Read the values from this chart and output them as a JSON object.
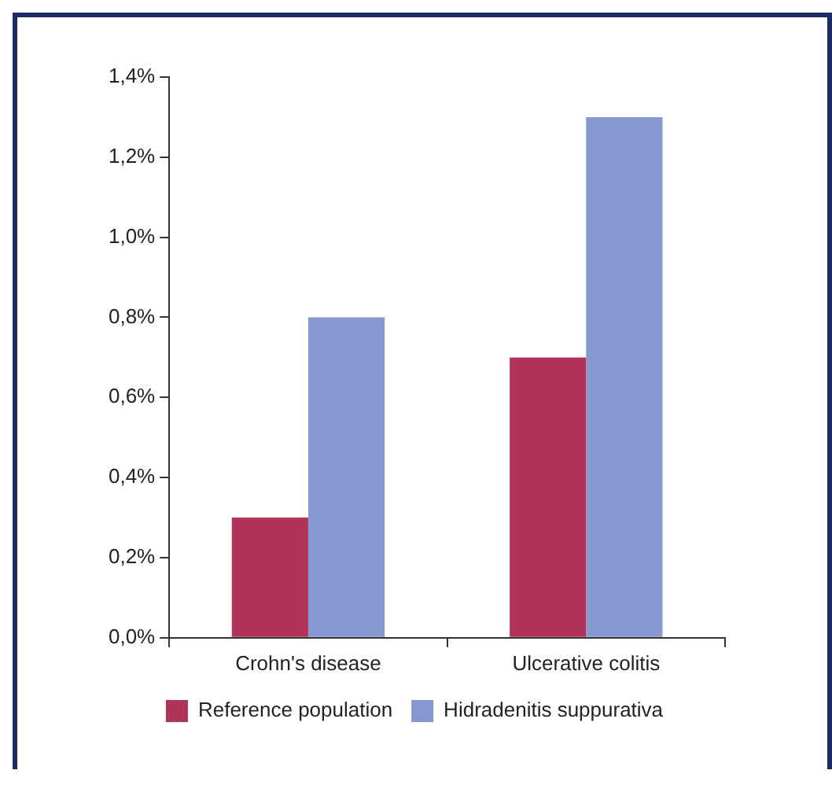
{
  "chart_data": {
    "type": "bar",
    "categories": [
      "Crohn's disease",
      "Ulcerative colitis"
    ],
    "series": [
      {
        "name": "Reference population",
        "color": "#b0345a",
        "values": [
          0.3,
          0.7
        ]
      },
      {
        "name": "Hidradenitis suppurativa",
        "color": "#8797cf",
        "values": [
          0.8,
          1.3
        ]
      }
    ],
    "ylim": [
      0,
      1.4
    ],
    "yticks": [
      {
        "value": 0,
        "label": "0,0%"
      },
      {
        "value": 0.2,
        "label": "0,2%"
      },
      {
        "value": 0.4,
        "label": "0,4%"
      },
      {
        "value": 0.6,
        "label": "0,6%"
      },
      {
        "value": 0.8,
        "label": "0,8%"
      },
      {
        "value": 1,
        "label": "1,0%"
      },
      {
        "value": 1.2,
        "label": "1,2%"
      },
      {
        "value": 1.4,
        "label": "1,4%"
      }
    ],
    "grid": false,
    "legend": "bottom"
  }
}
